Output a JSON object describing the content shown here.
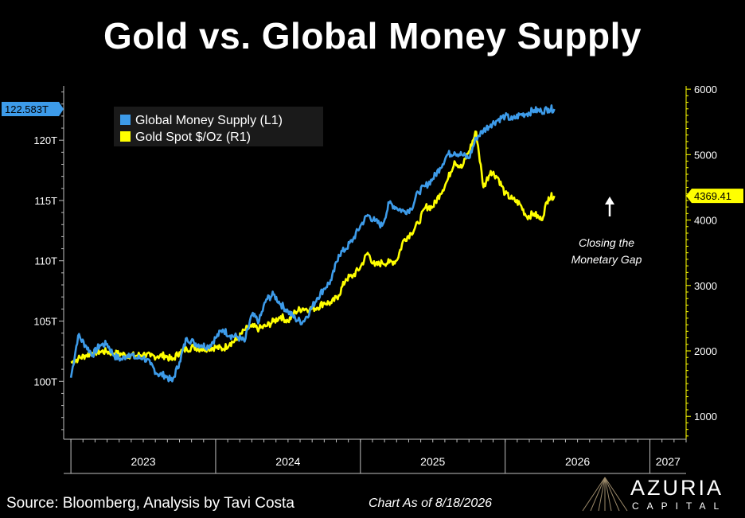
{
  "title": "Gold vs. Global Money Supply",
  "source": "Source: Bloomberg, Analysis by Tavi Costa",
  "as_of": "Chart As of 8/18/2026",
  "logo": {
    "name": "AZURIA",
    "sub": "CAPITAL"
  },
  "chart_data": {
    "type": "line",
    "legend": [
      "Global Money Supply (L1)",
      "Gold Spot $/Oz (R1)"
    ],
    "legend_placement": "top-left",
    "annotation": [
      "Closing the",
      "Monetary Gap"
    ],
    "annotation_icon": "up-arrow-icon",
    "x_tick_labels": [
      "2023",
      "2024",
      "2025",
      "2026",
      "2027"
    ],
    "xlim": [
      2022.95,
      2027.25
    ],
    "y_left": {
      "ticks": [
        100,
        105,
        110,
        115,
        120
      ],
      "tick_labels": [
        "100T",
        "105T",
        "110T",
        "115T",
        "120T"
      ],
      "lim": [
        95.2,
        124.5
      ],
      "last_value_label": "122.583T"
    },
    "y_right": {
      "ticks": [
        1000,
        2000,
        3000,
        4000,
        5000,
        6000
      ],
      "tick_labels": [
        "1000",
        "2000",
        "3000",
        "4000",
        "5000",
        "6000"
      ],
      "lim": [
        650,
        6050
      ],
      "last_value_label": "4369.41"
    },
    "grid": false,
    "colors": {
      "money": "#3d9be9",
      "gold": "#ffff00",
      "background": "#000000",
      "axis": "#bfbfbf",
      "legend_bg": "#1a1a1a"
    },
    "series": [
      {
        "name": "Global Money Supply (L1)",
        "axis": "left",
        "x": [
          2023.0,
          2023.05,
          2023.1,
          2023.15,
          2023.2,
          2023.25,
          2023.3,
          2023.35,
          2023.4,
          2023.45,
          2023.5,
          2023.55,
          2023.6,
          2023.65,
          2023.7,
          2023.75,
          2023.8,
          2023.85,
          2023.9,
          2023.95,
          2024.0,
          2024.05,
          2024.1,
          2024.15,
          2024.2,
          2024.25,
          2024.3,
          2024.35,
          2024.4,
          2024.45,
          2024.5,
          2024.55,
          2024.6,
          2024.65,
          2024.7,
          2024.75,
          2024.8,
          2024.85,
          2024.9,
          2024.95,
          2025.0,
          2025.05,
          2025.1,
          2025.15,
          2025.2,
          2025.25,
          2025.3,
          2025.35,
          2025.4,
          2025.45,
          2025.5,
          2025.55,
          2025.6,
          2025.65,
          2025.7,
          2025.75,
          2025.8,
          2025.85,
          2025.9,
          2025.95,
          2026.0,
          2026.05,
          2026.1,
          2026.15,
          2026.2,
          2026.25,
          2026.3,
          2026.34
        ],
        "values": [
          100.3,
          103.8,
          103.0,
          102.2,
          103.0,
          103.1,
          102.1,
          101.8,
          102.3,
          101.9,
          102.0,
          101.4,
          100.6,
          100.5,
          100.0,
          101.6,
          103.6,
          103.2,
          103.0,
          102.9,
          103.6,
          104.3,
          103.8,
          103.7,
          103.3,
          105.5,
          105.0,
          106.8,
          107.2,
          106.4,
          105.8,
          105.2,
          104.9,
          105.8,
          106.9,
          107.7,
          108.4,
          110.5,
          111.0,
          111.8,
          112.9,
          113.8,
          113.3,
          112.9,
          114.8,
          114.4,
          114.1,
          114.3,
          115.7,
          116.2,
          116.8,
          117.7,
          118.8,
          119.0,
          118.8,
          118.5,
          120.2,
          120.8,
          121.3,
          121.7,
          122.0,
          121.7,
          122.1,
          122.2,
          122.5,
          122.4,
          122.6,
          122.583
        ]
      },
      {
        "name": "Gold Spot $/Oz (R1)",
        "axis": "right",
        "x": [
          2023.0,
          2023.05,
          2023.1,
          2023.15,
          2023.2,
          2023.25,
          2023.3,
          2023.35,
          2023.4,
          2023.45,
          2023.5,
          2023.55,
          2023.6,
          2023.65,
          2023.7,
          2023.75,
          2023.8,
          2023.85,
          2023.9,
          2023.95,
          2024.0,
          2024.05,
          2024.1,
          2024.15,
          2024.2,
          2024.25,
          2024.3,
          2024.35,
          2024.4,
          2024.45,
          2024.5,
          2024.55,
          2024.6,
          2024.65,
          2024.7,
          2024.75,
          2024.8,
          2024.85,
          2024.9,
          2024.95,
          2025.0,
          2025.05,
          2025.1,
          2025.15,
          2025.2,
          2025.25,
          2025.3,
          2025.35,
          2025.4,
          2025.45,
          2025.5,
          2025.55,
          2025.6,
          2025.65,
          2025.7,
          2025.75,
          2025.8,
          2025.85,
          2025.9,
          2025.95,
          2026.0,
          2026.05,
          2026.1,
          2026.15,
          2026.2,
          2026.25,
          2026.3,
          2026.34
        ],
        "values": [
          1820,
          1880,
          1930,
          1970,
          1990,
          1990,
          1960,
          1950,
          1935,
          1925,
          1950,
          1915,
          1920,
          1930,
          1860,
          1980,
          2030,
          2060,
          2030,
          2045,
          2055,
          2030,
          2120,
          2170,
          2320,
          2370,
          2340,
          2380,
          2450,
          2530,
          2450,
          2600,
          2650,
          2640,
          2660,
          2740,
          2730,
          2850,
          3100,
          3150,
          3280,
          3500,
          3300,
          3350,
          3350,
          3380,
          3700,
          3800,
          3950,
          4200,
          4200,
          4400,
          4600,
          4900,
          4800,
          5050,
          5350,
          4500,
          4750,
          4650,
          4400,
          4320,
          4250,
          4050,
          4100,
          4000,
          4350,
          4369.41
        ]
      }
    ]
  }
}
